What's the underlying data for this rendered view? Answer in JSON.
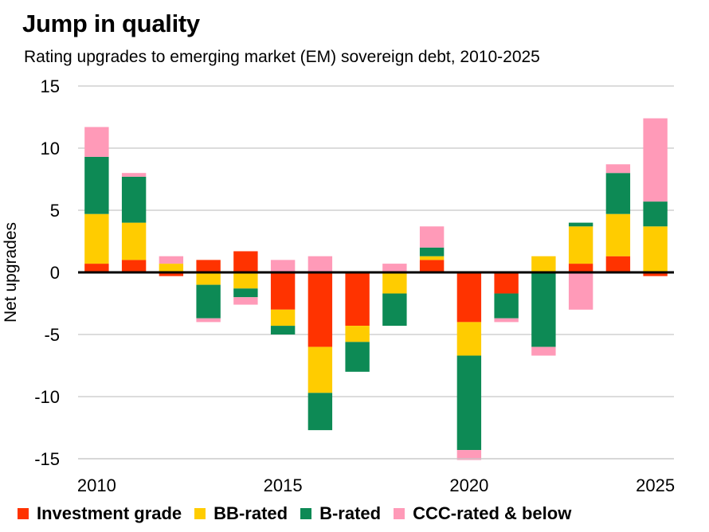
{
  "title": "Jump in quality",
  "subtitle": "Rating upgrades to emerging market (EM) sovereign debt, 2010-2025",
  "chart_data": {
    "type": "bar",
    "stacked": true,
    "title": "Jump in quality",
    "subtitle": "Rating upgrades to emerging market (EM) sovereign debt, 2010-2025",
    "xlabel": "",
    "ylabel": "Net upgrades",
    "ylim": [
      -15,
      15
    ],
    "yticks": [
      15,
      10,
      5,
      0,
      -5,
      -10,
      -15
    ],
    "xtick_labels": [
      "2010",
      "2015",
      "2020",
      "2025"
    ],
    "grid": true,
    "legend_position": "bottom",
    "categories": [
      "2010",
      "2011",
      "2012",
      "2013",
      "2014",
      "2015",
      "2016",
      "2017",
      "2018",
      "2019",
      "2020",
      "2021",
      "2022",
      "2023",
      "2024",
      "2025"
    ],
    "series": [
      {
        "name": "Investment grade",
        "color": "#ff3300",
        "values": [
          0.7,
          1.0,
          -0.3,
          1.0,
          1.7,
          -3.0,
          -6.0,
          -4.3,
          0,
          1.0,
          -4.0,
          -1.7,
          0,
          0.7,
          1.3,
          -0.3
        ]
      },
      {
        "name": "BB-rated",
        "color": "#ffcc00",
        "values": [
          4.0,
          3.0,
          0.7,
          -1.0,
          -1.3,
          -1.3,
          -3.7,
          -1.3,
          -1.7,
          0.3,
          -2.7,
          0,
          1.3,
          3.0,
          3.4,
          3.7
        ]
      },
      {
        "name": "B-rated",
        "color": "#0d8a55",
        "values": [
          4.6,
          3.7,
          0,
          -2.7,
          -0.7,
          -0.7,
          -3.0,
          -2.4,
          -2.6,
          0.7,
          -7.6,
          -2.0,
          -6.0,
          0.3,
          3.3,
          2.0
        ]
      },
      {
        "name": "CCC-rated & below",
        "color": "#ff9ab8",
        "values": [
          2.4,
          0.3,
          0.6,
          -0.3,
          -0.6,
          1.0,
          1.3,
          0,
          0.7,
          1.7,
          -0.8,
          -0.3,
          -0.7,
          -3.0,
          0.7,
          6.7
        ]
      }
    ]
  }
}
